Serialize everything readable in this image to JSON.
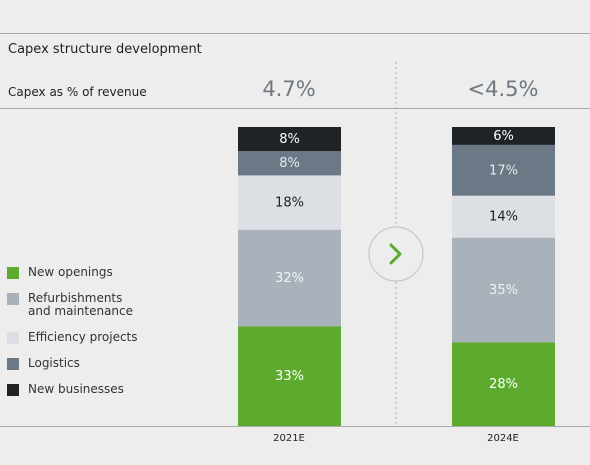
{
  "title": "Capex structure development",
  "subtitle": "Capex as % of revenue",
  "chart_data": {
    "type": "bar",
    "stacked": true,
    "title": "Capex structure development",
    "ylim": [
      0,
      100
    ],
    "categories": [
      "2021E",
      "2024E"
    ],
    "headline_values": [
      "4.7%",
      "<4.5%"
    ],
    "series": [
      {
        "name": "New openings",
        "color": "#5cab2e",
        "values": [
          33,
          28
        ],
        "labels": [
          "33%",
          "28%"
        ]
      },
      {
        "name": "Refurbishments and maintenance",
        "color": "#a9b2ba",
        "values": [
          32,
          35
        ],
        "labels": [
          "32%",
          "35%"
        ]
      },
      {
        "name": "Efficiency projects",
        "color": "#dcdfe3",
        "values": [
          18,
          14
        ],
        "labels": [
          "18%",
          "14%"
        ]
      },
      {
        "name": "Logistics",
        "color": "#6b7886",
        "values": [
          8,
          17
        ],
        "labels": [
          "8%",
          "17%"
        ]
      },
      {
        "name": "New businesses",
        "color": "#1f2326",
        "values": [
          8,
          6
        ],
        "labels": [
          "8%",
          "6%"
        ]
      }
    ],
    "legend": {
      "placement": "left",
      "items": [
        {
          "lines": [
            "New openings"
          ],
          "color": "#5cab2e"
        },
        {
          "lines": [
            "Refurbishments",
            "and maintenance"
          ],
          "color": "#a9b2ba"
        },
        {
          "lines": [
            "Efficiency projects"
          ],
          "color": "#dcdfe3"
        },
        {
          "lines": [
            "Logistics"
          ],
          "color": "#6b7886"
        },
        {
          "lines": [
            "New businesses"
          ],
          "color": "#1f2326"
        }
      ]
    },
    "arrow_icon": "chevron-right-icon"
  }
}
